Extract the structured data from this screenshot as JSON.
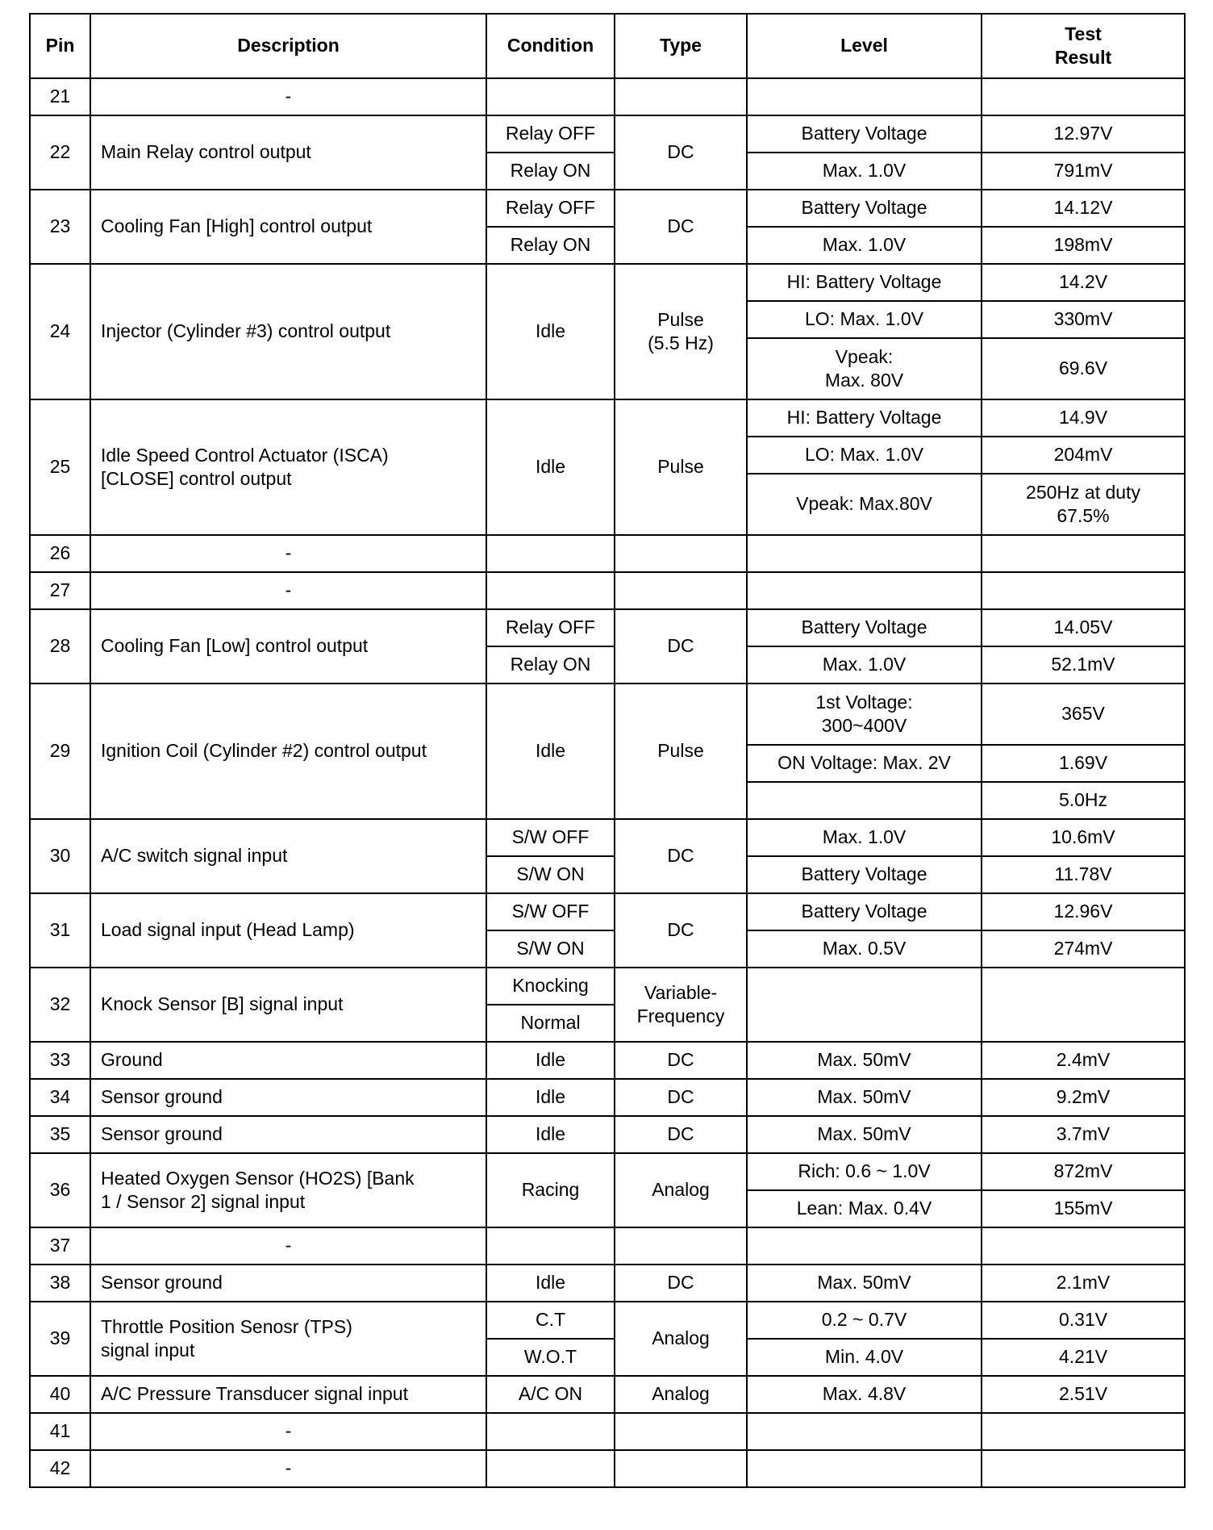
{
  "headers": {
    "pin": "Pin",
    "description": "Description",
    "condition": "Condition",
    "type": "Type",
    "level": "Level",
    "result": "Test\nResult"
  },
  "rows": [
    {
      "pin": "21",
      "description": "-",
      "type": "",
      "conditions": [
        ""
      ],
      "levels": [
        {
          "level": "",
          "result": ""
        }
      ]
    },
    {
      "pin": "22",
      "description": "Main Relay control output",
      "type": "DC",
      "conditions": [
        "Relay OFF",
        "Relay ON"
      ],
      "levels": [
        {
          "level": "Battery Voltage",
          "result": "12.97V"
        },
        {
          "level": "Max.  1.0V",
          "result": "791mV"
        }
      ]
    },
    {
      "pin": "23",
      "description": "Cooling Fan [High] control output",
      "type": "DC",
      "conditions": [
        "Relay OFF",
        "Relay ON"
      ],
      "levels": [
        {
          "level": "Battery Voltage",
          "result": "14.12V"
        },
        {
          "level": "Max.  1.0V",
          "result": "198mV"
        }
      ]
    },
    {
      "pin": "24",
      "description": "Injector (Cylinder #3) control output",
      "type": "Pulse\n(5.5 Hz)",
      "conditions": [
        "Idle"
      ],
      "levels": [
        {
          "level": "HI: Battery Voltage",
          "result": "14.2V"
        },
        {
          "level": "LO: Max.  1.0V",
          "result": "330mV"
        },
        {
          "level": "Vpeak:\nMax.  80V",
          "result": "69.6V"
        }
      ]
    },
    {
      "pin": "25",
      "description": "Idle Speed Control Actuator (ISCA)\n[CLOSE] control output",
      "type": "Pulse",
      "conditions": [
        "Idle"
      ],
      "levels": [
        {
          "level": "HI: Battery Voltage",
          "result": "14.9V"
        },
        {
          "level": "LO: Max.  1.0V",
          "result": "204mV"
        },
        {
          "level": "Vpeak:  Max.80V",
          "result": "250Hz at duty\n67.5%"
        }
      ]
    },
    {
      "pin": "26",
      "description": "-",
      "type": "",
      "conditions": [
        ""
      ],
      "levels": [
        {
          "level": "",
          "result": ""
        }
      ]
    },
    {
      "pin": "27",
      "description": "-",
      "type": "",
      "conditions": [
        ""
      ],
      "levels": [
        {
          "level": "",
          "result": ""
        }
      ]
    },
    {
      "pin": "28",
      "description": "Cooling Fan [Low] control output",
      "type": "DC",
      "conditions": [
        "Relay OFF",
        "Relay ON"
      ],
      "levels": [
        {
          "level": "Battery Voltage",
          "result": "14.05V"
        },
        {
          "level": "Max.  1.0V",
          "result": "52.1mV"
        }
      ]
    },
    {
      "pin": "29",
      "description": "Ignition Coil (Cylinder #2) control output",
      "type": "Pulse",
      "conditions": [
        "Idle"
      ],
      "levels": [
        {
          "level": "1st  Voltage:\n300~400V",
          "result": "365V"
        },
        {
          "level": "ON Voltage: Max. 2V",
          "result": "1.69V"
        },
        {
          "level": "",
          "result": "5.0Hz"
        }
      ]
    },
    {
      "pin": "30",
      "description": "A/C switch signal input",
      "type": "DC",
      "conditions": [
        "S/W OFF",
        "S/W ON"
      ],
      "levels": [
        {
          "level": "Max.  1.0V",
          "result": "10.6mV"
        },
        {
          "level": "Battery Voltage",
          "result": "11.78V"
        }
      ]
    },
    {
      "pin": "31",
      "description": "Load signal input (Head Lamp)",
      "type": "DC",
      "conditions": [
        "S/W OFF",
        "S/W ON"
      ],
      "levels": [
        {
          "level": "Battery Voltage",
          "result": "12.96V"
        },
        {
          "level": "Max.  0.5V",
          "result": "274mV"
        }
      ]
    },
    {
      "pin": "32",
      "description": "Knock Sensor [B] signal input",
      "type": "Variable-\nFrequency",
      "conditions": [
        "Knocking",
        "Normal"
      ],
      "levels": [
        {
          "level": "",
          "result": ""
        }
      ]
    },
    {
      "pin": "33",
      "description": "Ground",
      "type": "DC",
      "conditions": [
        "Idle"
      ],
      "levels": [
        {
          "level": "Max.  50mV",
          "result": "2.4mV"
        }
      ]
    },
    {
      "pin": "34",
      "description": "Sensor ground",
      "type": "DC",
      "conditions": [
        "Idle"
      ],
      "levels": [
        {
          "level": "Max.  50mV",
          "result": "9.2mV"
        }
      ]
    },
    {
      "pin": "35",
      "description": "Sensor ground",
      "type": "DC",
      "conditions": [
        "Idle"
      ],
      "levels": [
        {
          "level": "Max.  50mV",
          "result": "3.7mV"
        }
      ]
    },
    {
      "pin": "36",
      "description": "Heated Oxygen Sensor (HO2S) [Bank\n1 / Sensor 2] signal input",
      "type": "Analog",
      "conditions": [
        "Racing"
      ],
      "levels": [
        {
          "level": "Rich:  0.6 ~ 1.0V",
          "result": "872mV"
        },
        {
          "level": "Lean:  Max.  0.4V",
          "result": "155mV"
        }
      ]
    },
    {
      "pin": "37",
      "description": "-",
      "type": "",
      "conditions": [
        ""
      ],
      "levels": [
        {
          "level": "",
          "result": ""
        }
      ]
    },
    {
      "pin": "38",
      "description": "Sensor ground",
      "type": "DC",
      "conditions": [
        "Idle"
      ],
      "levels": [
        {
          "level": "Max.  50mV",
          "result": "2.1mV"
        }
      ]
    },
    {
      "pin": "39",
      "description": "Throttle Position Senosr (TPS)\nsignal  input",
      "type": "Analog",
      "conditions": [
        "C.T",
        "W.O.T"
      ],
      "levels": [
        {
          "level": "0.2 ~ 0.7V",
          "result": "0.31V"
        },
        {
          "level": "Min.  4.0V",
          "result": "4.21V"
        }
      ]
    },
    {
      "pin": "40",
      "description": "A/C Pressure Transducer signal input",
      "type": "Analog",
      "conditions": [
        "A/C ON"
      ],
      "levels": [
        {
          "level": "Max.  4.8V",
          "result": "2.51V"
        }
      ]
    },
    {
      "pin": "41",
      "description": "-",
      "type": "",
      "conditions": [
        ""
      ],
      "levels": [
        {
          "level": "",
          "result": ""
        }
      ]
    },
    {
      "pin": "42",
      "description": "-",
      "type": "",
      "conditions": [
        ""
      ],
      "levels": [
        {
          "level": "",
          "result": ""
        }
      ]
    }
  ]
}
